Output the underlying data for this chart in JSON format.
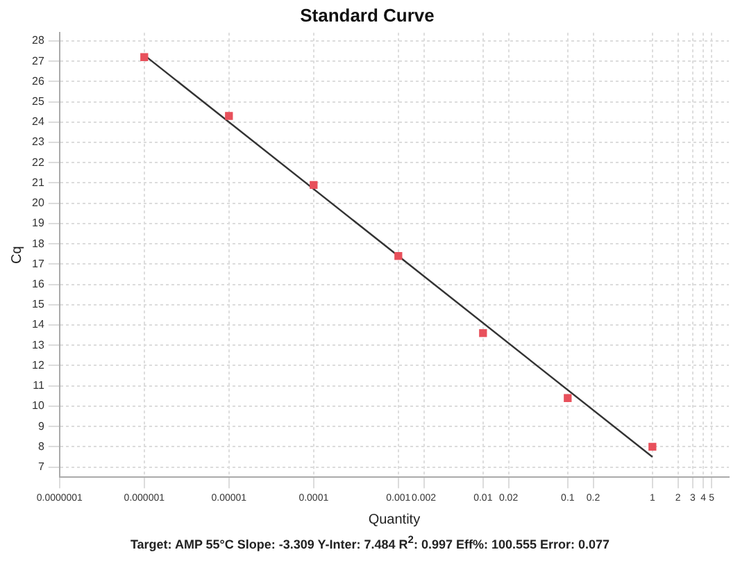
{
  "chart_data": {
    "type": "scatter",
    "title": "Standard Curve",
    "xlabel": "Quantity",
    "ylabel": "Cq",
    "log": "x",
    "grid": true,
    "legend": false,
    "marker": "square",
    "xlim": [
      1e-07,
      8
    ],
    "xticks": [
      {
        "value": 1e-07,
        "label": "0.0000001"
      },
      {
        "value": 1e-06,
        "label": "0.000001"
      },
      {
        "value": 1e-05,
        "label": "0.00001"
      },
      {
        "value": 0.0001,
        "label": "0.0001"
      },
      {
        "value": 0.001,
        "label": "0.001"
      },
      {
        "value": 0.002,
        "label": "0.002"
      },
      {
        "value": 0.01,
        "label": "0.01"
      },
      {
        "value": 0.02,
        "label": "0.02"
      },
      {
        "value": 0.1,
        "label": "0.1"
      },
      {
        "value": 0.2,
        "label": "0.2"
      },
      1,
      2,
      3,
      4,
      5
    ],
    "ylim": [
      6.5,
      28.4
    ],
    "yticks": [
      7,
      8,
      9,
      10,
      11,
      12,
      13,
      14,
      15,
      16,
      17,
      18,
      19,
      20,
      21,
      22,
      23,
      24,
      25,
      26,
      27,
      28
    ],
    "series": [
      {
        "color": "#e8505b",
        "x": [
          1e-06,
          1e-05,
          0.0001,
          0.001,
          0.01,
          0.1,
          1
        ],
        "values": [
          27.2,
          24.3,
          20.9,
          17.4,
          13.6,
          10.4,
          8.0
        ]
      },
      {
        "type": "line",
        "marker": "none",
        "color": "#333333",
        "x": [
          1e-06,
          1
        ],
        "values": [
          27.3,
          7.5
        ]
      }
    ],
    "annotations": [
      "Target: AMP 55°C  Slope: -3.309  Y-Inter: 7.484  R$^{2}$: 0.997  Eff%: 100.555  Error: 0.077"
    ]
  }
}
